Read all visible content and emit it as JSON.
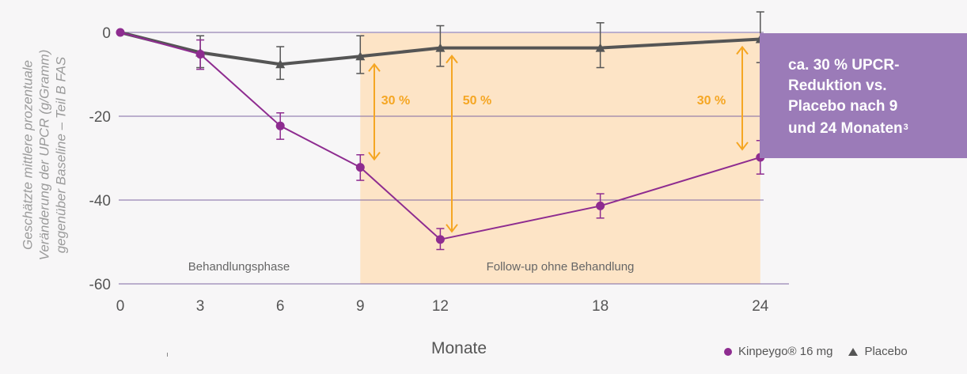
{
  "chart_data": {
    "type": "line",
    "title": "",
    "ylabel_lines": [
      "Geschätzte mittlere prozentuale",
      "Veränderung der UPCR (g/Gramm)",
      "gegenüber Baseline – Teil B FAS"
    ],
    "xlabel": "Monate",
    "x_ticks": [
      0,
      3,
      6,
      9,
      12,
      18,
      24
    ],
    "x_tick_labels": [
      "0",
      "3",
      "6",
      "9",
      "12",
      "18",
      "24"
    ],
    "y_ticks": [
      0,
      -20,
      -40,
      -60
    ],
    "y_tick_labels": [
      "0",
      "-20",
      "-40",
      "-60"
    ],
    "ylim": [
      -60,
      0
    ],
    "grid_y": true,
    "series": [
      {
        "name": "Kinpeygo® 16 mg",
        "color": "#8e2c90",
        "marker": "circle",
        "points": [
          {
            "x": 0,
            "y": 0,
            "lo": 0,
            "hi": 0
          },
          {
            "x": 3,
            "y": -5.2,
            "lo": -8.8,
            "hi": -1.8
          },
          {
            "x": 6,
            "y": -22.3,
            "lo": -25.5,
            "hi": -19.2
          },
          {
            "x": 9,
            "y": -32.2,
            "lo": -35.3,
            "hi": -29.2
          },
          {
            "x": 12,
            "y": -49.4,
            "lo": -51.8,
            "hi": -46.8
          },
          {
            "x": 18,
            "y": -41.4,
            "lo": -44.3,
            "hi": -38.5
          },
          {
            "x": 24,
            "y": -29.8,
            "lo": -33.8,
            "hi": -25.8
          }
        ]
      },
      {
        "name": "Placebo",
        "color": "#555555",
        "marker": "triangle",
        "points": [
          {
            "x": 0,
            "y": 0,
            "lo": 0,
            "hi": 0
          },
          {
            "x": 3,
            "y": -4.8,
            "lo": -8.4,
            "hi": -0.8
          },
          {
            "x": 6,
            "y": -7.6,
            "lo": -11.2,
            "hi": -3.4
          },
          {
            "x": 9,
            "y": -5.7,
            "lo": -9.8,
            "hi": -0.8
          },
          {
            "x": 12,
            "y": -3.7,
            "lo": -8.1,
            "hi": 1.6
          },
          {
            "x": 18,
            "y": -3.7,
            "lo": -8.4,
            "hi": 2.3
          },
          {
            "x": 24,
            "y": -1.6,
            "lo": -7.2,
            "hi": 4.9
          }
        ]
      }
    ],
    "phases": [
      {
        "label": "Behandlungsphase",
        "x_center": 4.5
      },
      {
        "label": "Follow-up ohne Behandlung",
        "x_start": 9,
        "x_end": 24,
        "fill": "#fde4c6"
      }
    ],
    "annotations": [
      {
        "label": "30 %",
        "x": 9,
        "from_y": -5.7,
        "to_y": -32.2,
        "color": "#f5a623"
      },
      {
        "label": "50 %",
        "x": 12,
        "from_y": -3.7,
        "to_y": -49.4,
        "color": "#f5a623"
      },
      {
        "label": "30 %",
        "x": 24,
        "from_y": -1.6,
        "to_y": -29.8,
        "color": "#f5a623"
      }
    ],
    "legend_position": "bottom-right"
  },
  "callout": {
    "lines": [
      "ca. 30 % UPCR-",
      "Reduktion vs.",
      "Placebo nach 9",
      "und 24 Monaten"
    ],
    "footnote": "3",
    "color": "#9b7bb8"
  },
  "legend": {
    "kinpeygo": "Kinpeygo® 16 mg",
    "placebo": "Placebo"
  }
}
